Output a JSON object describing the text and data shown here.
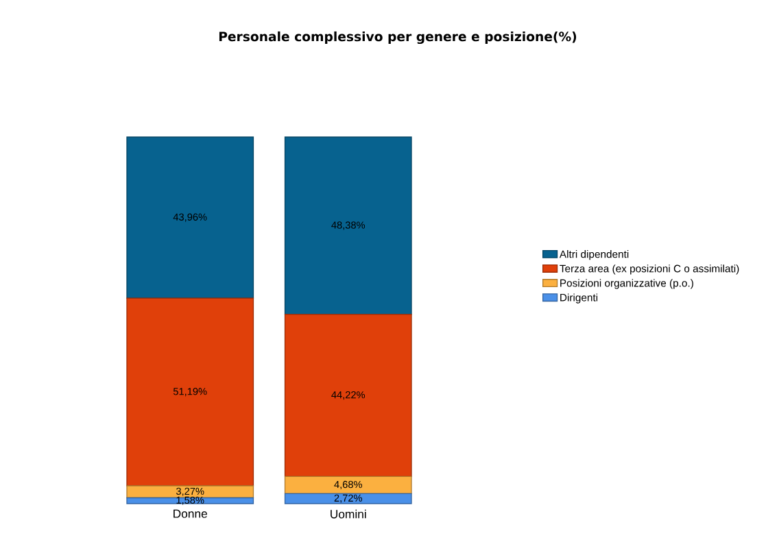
{
  "chart_data": {
    "type": "bar",
    "title": "Personale complessivo per genere e posizione(%)",
    "stacked": true,
    "categories": [
      "Donne",
      "Uomini"
    ],
    "ylim": [
      0,
      100
    ],
    "tick_labels": "x",
    "legend": "right",
    "series": [
      {
        "name": "Dirigenti",
        "color": "#4a90e8",
        "values": [
          1.58,
          2.72
        ],
        "value_labels": [
          "1,58%",
          "2,72%"
        ]
      },
      {
        "name": "Posizioni organizzative (p.o.)",
        "color": "#fbb040",
        "values": [
          3.27,
          4.68
        ],
        "value_labels": [
          "3,27%",
          "4,68%"
        ]
      },
      {
        "name": "Terza area (ex posizioni C o assimilati)",
        "color": "#e0400a",
        "values": [
          51.19,
          44.22
        ],
        "value_labels": [
          "51,19%",
          "44,22%"
        ]
      },
      {
        "name": "Altri dipendenti",
        "color": "#07628f",
        "values": [
          43.96,
          48.38
        ],
        "value_labels": [
          "43,96%",
          "48,38%"
        ]
      }
    ]
  }
}
